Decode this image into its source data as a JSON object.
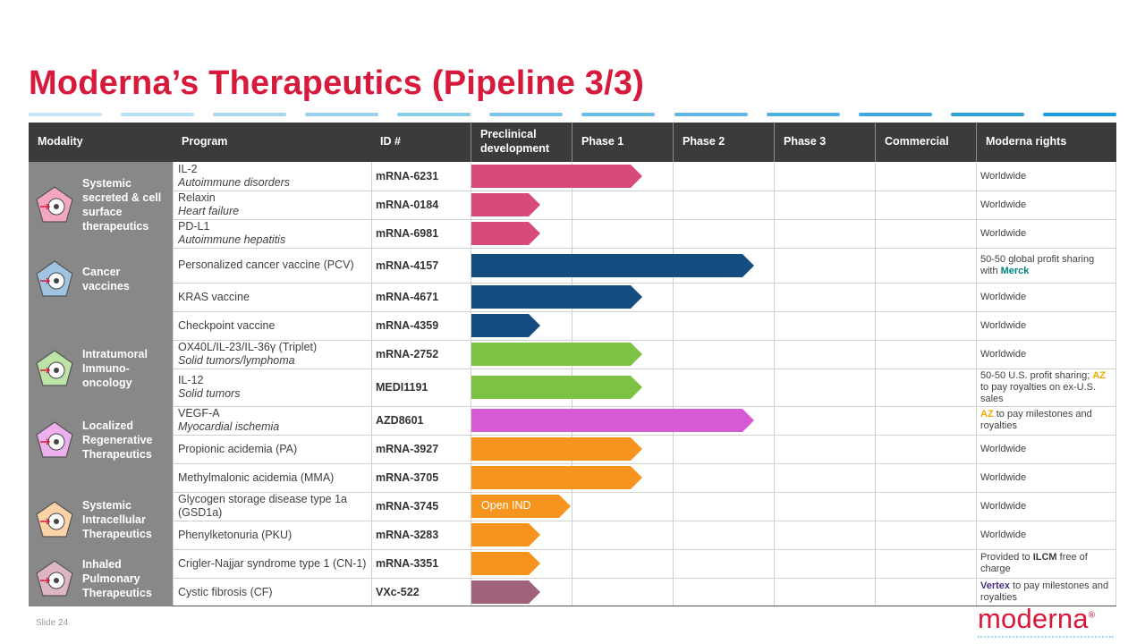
{
  "title": "Moderna’s Therapeutics (Pipeline 3/3)",
  "dash_colors": [
    "#c7e6f5",
    "#b8e0f3",
    "#a8d9f0",
    "#99d2ee",
    "#89cbeb",
    "#7ac4e8",
    "#6abde6",
    "#5bb6e3",
    "#4cafe0",
    "#3ca8de",
    "#2da1db",
    "#1d9ad9"
  ],
  "headers": {
    "modality": "Modality",
    "program": "Program",
    "id": "ID #",
    "preclinical_line1": "Preclinical",
    "preclinical_line2": "development",
    "phase1": "Phase 1",
    "phase2": "Phase 2",
    "phase3": "Phase 3",
    "commercial": "Commercial",
    "rights": "Moderna rights"
  },
  "modalities": [
    {
      "lines": [
        "Systemic",
        "secreted & cell",
        "surface",
        "therapeutics"
      ],
      "icon": "person-icon",
      "color": "#f3a6c1"
    },
    {
      "lines": [
        "Cancer",
        "vaccines"
      ],
      "icon": "cells-icon",
      "color": "#9fc3e0"
    },
    {
      "lines": [
        "Intratumoral",
        "Immuno-",
        "oncology"
      ],
      "icon": "tumor-icon",
      "color": "#bde3a6"
    },
    {
      "lines": [
        "Localized",
        "Regenerative",
        "Therapeutics"
      ],
      "icon": "cell-icon",
      "color": "#ecb0ec"
    },
    {
      "lines": [
        "Systemic",
        "Intracellular",
        "Therapeutics"
      ],
      "icon": "organelle-icon",
      "color": "#fcd2a7"
    },
    {
      "lines": [
        "Inhaled",
        "Pulmonary",
        "Therapeutics"
      ],
      "icon": "lungs-icon",
      "color": "#ddb6c6"
    }
  ],
  "rows": [
    {
      "program": "IL-2",
      "sub": "Autoimmune disorders",
      "id": "mRNA-6231",
      "bar_color": "#d84a7a",
      "phase": 1,
      "rights": [
        {
          "t": "Worldwide"
        }
      ]
    },
    {
      "program": "Relaxin",
      "sub": "Heart failure",
      "id": "mRNA-0184",
      "bar_color": "#d84a7a",
      "phase": 0,
      "rights": [
        {
          "t": "Worldwide"
        }
      ]
    },
    {
      "program": "PD-L1",
      "sub": "Autoimmune hepatitis",
      "id": "mRNA-6981",
      "bar_color": "#d84a7a",
      "phase": 0,
      "rights": [
        {
          "t": "Worldwide"
        }
      ]
    },
    {
      "program": "Personalized cancer vaccine (PCV)",
      "sub": "",
      "id": "mRNA-4157",
      "bar_color": "#154d80",
      "phase": 2,
      "rights": [
        {
          "t": "50-50 global profit sharing with "
        },
        {
          "t": "Merck",
          "c": "#00857c",
          "b": true
        }
      ]
    },
    {
      "program": "KRAS vaccine",
      "sub": "",
      "id": "mRNA-4671",
      "bar_color": "#154d80",
      "phase": 1,
      "rights": [
        {
          "t": "Worldwide"
        }
      ]
    },
    {
      "program": "Checkpoint vaccine",
      "sub": "",
      "id": "mRNA-4359",
      "bar_color": "#154d80",
      "phase": 0,
      "rights": [
        {
          "t": "Worldwide"
        }
      ]
    },
    {
      "program": "OX40L/IL-23/IL-36γ  (Triplet)",
      "sub": "Solid tumors/lymphoma",
      "id": "mRNA-2752",
      "bar_color": "#7dc242",
      "phase": 1,
      "rights": [
        {
          "t": "Worldwide"
        }
      ]
    },
    {
      "program": "IL-12",
      "sub": "Solid tumors",
      "id": "MEDI1191",
      "bar_color": "#7dc242",
      "phase": 1,
      "rights": [
        {
          "t": "50-50 U.S. profit sharing; "
        },
        {
          "t": "AZ",
          "c": "#f0a800",
          "b": true
        },
        {
          "t": " to pay royalties on ex-U.S. sales"
        }
      ]
    },
    {
      "program": "VEGF-A",
      "sub": "Myocardial ischemia",
      "id": "AZD8601",
      "bar_color": "#d659d6",
      "phase": 2,
      "rights": [
        {
          "t": "AZ",
          "c": "#f0a800",
          "b": true
        },
        {
          "t": " to pay milestones and royalties"
        }
      ]
    },
    {
      "program": "Propionic acidemia (PA)",
      "sub": "",
      "id": "mRNA-3927",
      "bar_color": "#f7941d",
      "phase": 1,
      "rights": [
        {
          "t": "Worldwide"
        }
      ]
    },
    {
      "program": "Methylmalonic acidemia (MMA)",
      "sub": "",
      "id": "mRNA-3705",
      "bar_color": "#f7941d",
      "phase": 1,
      "rights": [
        {
          "t": "Worldwide"
        }
      ]
    },
    {
      "program": "Glycogen storage disease type 1a (GSD1a)",
      "sub": "",
      "id": "mRNA-3745",
      "bar_color": "#f7941d",
      "phase": 0.5,
      "bar_label": "Open IND",
      "rights": [
        {
          "t": "Worldwide"
        }
      ]
    },
    {
      "program": "Phenylketonuria (PKU)",
      "sub": "",
      "id": "mRNA-3283",
      "bar_color": "#f7941d",
      "phase": 0,
      "rights": [
        {
          "t": "Worldwide"
        }
      ]
    },
    {
      "program": "Crigler-Najjar syndrome type 1 (CN-1)",
      "sub": "",
      "id": "mRNA-3351",
      "bar_color": "#f7941d",
      "phase": 0,
      "rights": [
        {
          "t": "Provided to "
        },
        {
          "t": "ILCM",
          "b": true
        },
        {
          "t": " free of charge"
        }
      ]
    },
    {
      "program": "Cystic fibrosis (CF)",
      "sub": "",
      "id": "VXc-522",
      "bar_color": "#a0617a",
      "phase": 0,
      "rights": [
        {
          "t": "Vertex",
          "c": "#4b2e83",
          "b": true
        },
        {
          "t": " to pay milestones and royalties"
        }
      ]
    }
  ],
  "footer": {
    "slide": "Slide 24",
    "logo": "moderna",
    "logo_mark": "®"
  }
}
